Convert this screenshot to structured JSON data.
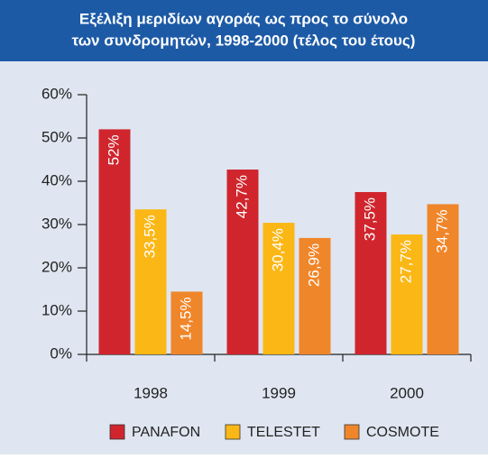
{
  "chart_data": {
    "type": "bar",
    "title": [
      "Εξέλιξη μεριδίων αγοράς ως προς το σύνολο",
      "των συνδρομητών, 1998-2000 (τέλος του έτους)"
    ],
    "categories": [
      "1998",
      "1999",
      "2000"
    ],
    "series": [
      {
        "name": "PANAFON",
        "color": "#d0252d",
        "values": [
          52,
          42.7,
          37.5
        ],
        "value_labels": [
          "52%",
          "42,7%",
          "37,5%"
        ]
      },
      {
        "name": "TELESTET",
        "color": "#fbb715",
        "values": [
          33.5,
          30.4,
          27.7
        ],
        "value_labels": [
          "33,5%",
          "30,4%",
          "27,7%"
        ]
      },
      {
        "name": "COSMOTE",
        "color": "#f0862a",
        "values": [
          14.5,
          26.9,
          34.7
        ],
        "value_labels": [
          "14,5%",
          "26,9%",
          "34,7%"
        ]
      }
    ],
    "ylim": [
      0,
      60
    ],
    "yticks": [
      {
        "value": 0,
        "label": "0%"
      },
      {
        "value": 10,
        "label": "10%"
      },
      {
        "value": 20,
        "label": "20%"
      },
      {
        "value": 30,
        "label": "30%"
      },
      {
        "value": 40,
        "label": "40%"
      },
      {
        "value": 50,
        "label": "50%"
      },
      {
        "value": 60,
        "label": "60%"
      }
    ]
  }
}
